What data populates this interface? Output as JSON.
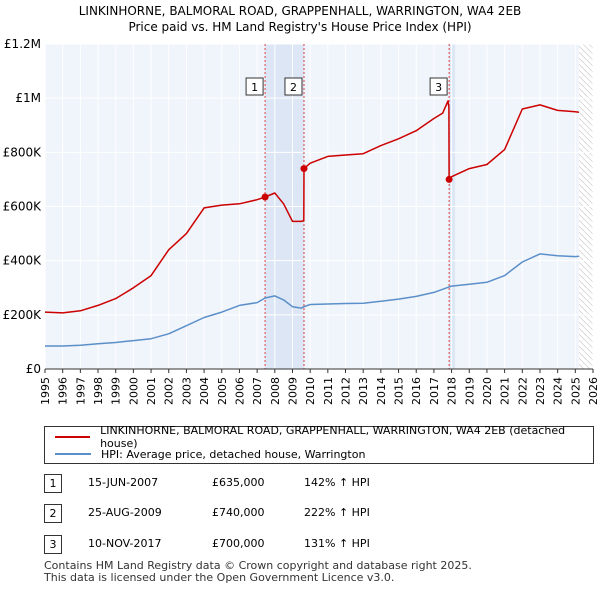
{
  "title": {
    "line1": "LINKINHORNE, BALMORAL ROAD, GRAPPENHALL, WARRINGTON, WA4 2EB",
    "line2": "Price paid vs. HM Land Registry's House Price Index (HPI)"
  },
  "chart_data": {
    "type": "line",
    "x_range": [
      1995,
      2026
    ],
    "y_range": [
      0,
      1200000
    ],
    "y_ticks": [
      {
        "value": 0,
        "label": "£0"
      },
      {
        "value": 200000,
        "label": "£200K"
      },
      {
        "value": 400000,
        "label": "£400K"
      },
      {
        "value": 600000,
        "label": "£600K"
      },
      {
        "value": 800000,
        "label": "£800K"
      },
      {
        "value": 1000000,
        "label": "£1M"
      },
      {
        "value": 1200000,
        "label": "£1.2M"
      }
    ],
    "x_ticks": [
      "1995",
      "1996",
      "1997",
      "1998",
      "1999",
      "2000",
      "2001",
      "2002",
      "2003",
      "2004",
      "2005",
      "2006",
      "2007",
      "2008",
      "2009",
      "2010",
      "2011",
      "2012",
      "2013",
      "2014",
      "2015",
      "2016",
      "2017",
      "2018",
      "2019",
      "2020",
      "2021",
      "2022",
      "2023",
      "2024",
      "2025",
      "2026"
    ],
    "shaded_periods": [
      {
        "from": 2007.45,
        "to": 2009.65
      },
      {
        "from": 2017.86,
        "to": 2018.2
      }
    ],
    "forecast_from": 2025.2,
    "series": [
      {
        "name": "LINKINHORNE, BALMORAL ROAD, GRAPPENHALL, WARRINGTON, WA4 2EB (detached house)",
        "color": "#cc0000",
        "x": [
          1995.0,
          1996.0,
          1997.0,
          1998.0,
          1999.0,
          2000.0,
          2001.0,
          2002.0,
          2003.0,
          2004.0,
          2005.0,
          2006.0,
          2007.0,
          2007.45,
          2008.0,
          2008.5,
          2009.0,
          2009.5,
          2009.64,
          2009.65,
          2010.0,
          2011.0,
          2012.0,
          2013.0,
          2014.0,
          2015.0,
          2016.0,
          2017.0,
          2017.5,
          2017.8,
          2017.85,
          2017.86,
          2018.0,
          2019.0,
          2020.0,
          2021.0,
          2022.0,
          2023.0,
          2024.0,
          2025.0,
          2025.2
        ],
        "values": [
          210000,
          207000,
          215000,
          235000,
          260000,
          300000,
          345000,
          440000,
          500000,
          595000,
          605000,
          610000,
          625000,
          635000,
          650000,
          610000,
          545000,
          545000,
          548000,
          740000,
          760000,
          785000,
          790000,
          795000,
          825000,
          850000,
          880000,
          925000,
          945000,
          990000,
          965000,
          700000,
          710000,
          740000,
          755000,
          810000,
          960000,
          975000,
          955000,
          950000,
          948000
        ]
      },
      {
        "name": "HPI: Average price, detached house, Warrington",
        "color": "#5b8fc9",
        "x": [
          1995.0,
          1996.0,
          1997.0,
          1998.0,
          1999.0,
          2000.0,
          2001.0,
          2002.0,
          2003.0,
          2004.0,
          2005.0,
          2006.0,
          2007.0,
          2007.45,
          2008.0,
          2008.5,
          2009.0,
          2009.5,
          2009.65,
          2010.0,
          2011.0,
          2012.0,
          2013.0,
          2014.0,
          2015.0,
          2016.0,
          2017.0,
          2017.86,
          2018.0,
          2019.0,
          2020.0,
          2021.0,
          2022.0,
          2023.0,
          2024.0,
          2025.0,
          2025.2
        ],
        "values": [
          85000,
          85000,
          88000,
          93000,
          98000,
          105000,
          112000,
          130000,
          160000,
          190000,
          210000,
          235000,
          245000,
          262000,
          270000,
          255000,
          230000,
          225000,
          230000,
          238000,
          240000,
          242000,
          243000,
          250000,
          258000,
          268000,
          283000,
          303000,
          306000,
          313000,
          320000,
          345000,
          395000,
          425000,
          418000,
          415000,
          416000
        ]
      }
    ],
    "sales": [
      {
        "label": "1",
        "x": 2007.45,
        "value": 635000
      },
      {
        "label": "2",
        "x": 2009.65,
        "value": 740000
      },
      {
        "label": "3",
        "x": 2017.86,
        "value": 700000
      }
    ]
  },
  "legend": {
    "property_label": "LINKINHORNE, BALMORAL ROAD, GRAPPENHALL, WARRINGTON, WA4 2EB (detached house)",
    "hpi_label": "HPI: Average price, detached house, Warrington"
  },
  "sales_table": [
    {
      "num": "1",
      "date": "15-JUN-2007",
      "price": "£635,000",
      "hpi": "142% ↑ HPI"
    },
    {
      "num": "2",
      "date": "25-AUG-2009",
      "price": "£740,000",
      "hpi": "222% ↑ HPI"
    },
    {
      "num": "3",
      "date": "10-NOV-2017",
      "price": "£700,000",
      "hpi": "131% ↑ HPI"
    }
  ],
  "footer": {
    "line1": "Contains HM Land Registry data © Crown copyright and database right 2025.",
    "line2": "This data is licensed under the Open Government Licence v3.0."
  }
}
